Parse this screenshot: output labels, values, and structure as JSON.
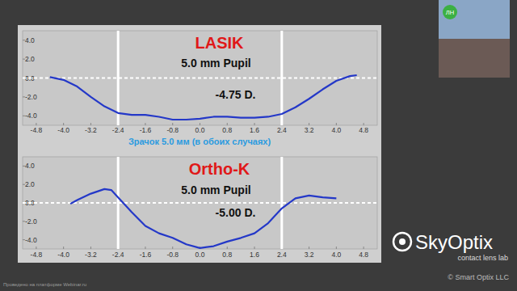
{
  "chart_data": [
    {
      "type": "line",
      "title": "LASIK",
      "subtitle": "5.0 mm Pupil",
      "annotations": [
        "-4.75 D."
      ],
      "x": [
        -4.4,
        -4.0,
        -3.6,
        -3.2,
        -2.8,
        -2.4,
        -2.0,
        -1.6,
        -1.2,
        -0.8,
        -0.4,
        0.0,
        0.4,
        0.8,
        1.2,
        1.6,
        2.0,
        2.4,
        2.8,
        3.2,
        3.6,
        4.0,
        4.4,
        4.6
      ],
      "values": [
        0.1,
        -0.2,
        -0.9,
        -2.0,
        -3.0,
        -3.7,
        -3.9,
        -3.9,
        -4.1,
        -4.4,
        -4.4,
        -4.3,
        -4.1,
        -4.1,
        -4.2,
        -4.2,
        -4.1,
        -3.8,
        -3.1,
        -2.2,
        -1.2,
        -0.3,
        0.2,
        0.3
      ],
      "color": "#2438c8",
      "xlim": [
        -5.2,
        5.2
      ],
      "xticks": [
        -4.8,
        {
          "value": -4,
          "label": "-4.0"
        },
        -3.2,
        -2.4,
        -1.6,
        -0.8,
        {
          "value": 0,
          "label": "0.0"
        },
        0.8,
        1.6,
        2.4,
        3.2,
        {
          "value": 4,
          "label": "4.0"
        },
        4.8
      ],
      "ylim": [
        -5,
        5
      ],
      "yticks": [
        {
          "value": 4,
          "label": "4.0"
        },
        {
          "value": 2,
          "label": "2.0"
        },
        {
          "value": 0,
          "label": "0.0"
        },
        {
          "value": -2,
          "label": "-2.0"
        },
        {
          "value": -4,
          "label": "-4.0"
        }
      ],
      "vlines": [
        -2.4,
        2.4
      ],
      "hlines": [
        0
      ],
      "grid": false
    },
    {
      "type": "line",
      "title": "Ortho-K",
      "subtitle": "5.0 mm Pupil",
      "annotations": [
        "-5.00 D."
      ],
      "x": [
        -3.8,
        -3.6,
        -3.2,
        -2.8,
        -2.6,
        -2.4,
        -2.0,
        -1.6,
        -1.2,
        -0.8,
        -0.4,
        0.0,
        0.4,
        0.8,
        1.2,
        1.6,
        2.0,
        2.4,
        2.8,
        3.2,
        3.6,
        4.0
      ],
      "values": [
        -0.1,
        0.3,
        1.0,
        1.5,
        1.4,
        0.6,
        -1.0,
        -2.5,
        -3.3,
        -3.8,
        -4.5,
        -4.9,
        -4.7,
        -4.2,
        -3.8,
        -3.3,
        -2.2,
        -0.6,
        0.5,
        0.8,
        0.6,
        0.5
      ],
      "color": "#2438c8",
      "xlim": [
        -5.2,
        5.2
      ],
      "xticks": [
        -4.8,
        {
          "value": -4,
          "label": "-4.0"
        },
        -3.2,
        -2.4,
        -1.6,
        -0.8,
        {
          "value": 0,
          "label": "0.0"
        },
        0.8,
        1.6,
        2.4,
        3.2,
        {
          "value": 4,
          "label": "4.0"
        },
        4.8
      ],
      "ylim": [
        -5,
        5
      ],
      "yticks": [
        {
          "value": 4,
          "label": "4.0"
        },
        {
          "value": 2,
          "label": "2.0"
        },
        {
          "value": 0,
          "label": "0.0"
        },
        {
          "value": -2,
          "label": "-2.0"
        },
        {
          "value": -4,
          "label": "-4.0"
        }
      ],
      "vlines": [
        -2.4,
        2.4
      ],
      "hlines": [
        0
      ],
      "grid": false
    }
  ],
  "caption": "Зрачок 5.0 мм (в обоих случаях)",
  "webinar": {
    "avatar": "ЛН",
    "platform": "Проведено на платформе Webinar.ru"
  },
  "logo": {
    "name": "SkyOptix",
    "tagline": "contact lens lab",
    "copyright": "© Smart Optix LLC"
  }
}
